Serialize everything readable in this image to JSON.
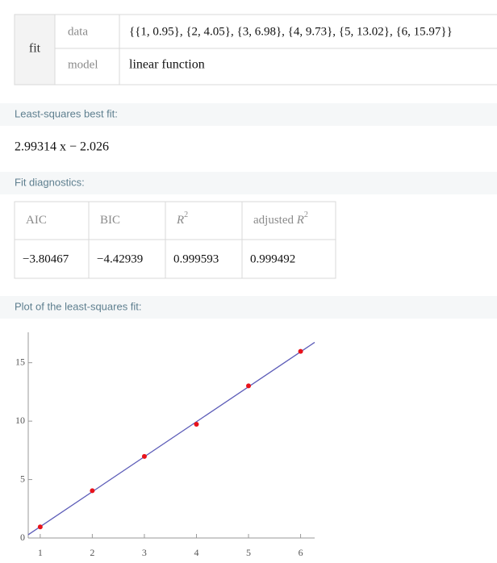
{
  "input": {
    "button": "fit",
    "rows": [
      {
        "label": "data",
        "value": "{{1, 0.95}, {2, 4.05}, {3, 6.98}, {4, 9.73}, {5, 13.02}, {6, 15.97}}"
      },
      {
        "label": "model",
        "value": "linear function"
      }
    ]
  },
  "results": {
    "best_fit_title": "Least-squares best fit:",
    "best_fit": "2.99314 x − 2.026",
    "diagnostics_title": "Fit diagnostics:",
    "diagnostics_headers": [
      {
        "text": "AIC"
      },
      {
        "text": "BIC"
      },
      {
        "var": "R",
        "sup": "2"
      },
      {
        "text": "adjusted ",
        "var": "R",
        "sup": "2"
      }
    ],
    "diagnostics_values": [
      "−3.80467",
      "−4.42939",
      "0.999593",
      "0.999492"
    ],
    "plot_title": "Plot of the least-squares fit:"
  },
  "chart_data": {
    "type": "scatter",
    "x": [
      1,
      2,
      3,
      4,
      5,
      6
    ],
    "values": [
      0.95,
      4.05,
      6.98,
      9.73,
      13.02,
      15.97
    ],
    "color": "#e8121b",
    "fit_line": {
      "slope": 2.99314,
      "intercept": -2.026,
      "color": "#5c5cb8"
    },
    "xlim": [
      0.77,
      6.27
    ],
    "ylim": [
      0,
      17.6
    ],
    "xticks": [
      1,
      2,
      3,
      4,
      5,
      6
    ],
    "yticks": [
      0,
      5,
      10,
      15
    ]
  }
}
